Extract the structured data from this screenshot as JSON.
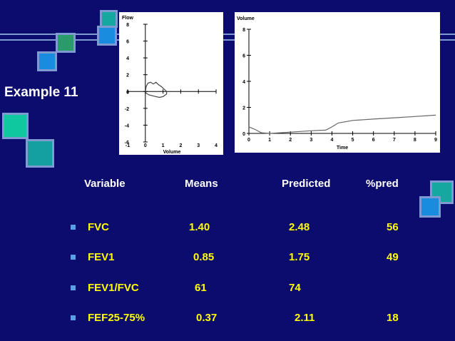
{
  "slide": {
    "title": "Example 11",
    "colors": {
      "background": "#0c0c6e",
      "header_text": "#ffffff",
      "value_text": "#ffff00",
      "bullet": "#5aa0e6"
    }
  },
  "table": {
    "headers": [
      "Variable",
      "Means",
      "Predicted",
      "%pred"
    ],
    "rows": [
      [
        "FVC",
        "1.40",
        "2.48",
        "56"
      ],
      [
        "FEV1",
        "0.85",
        "1.75",
        "49"
      ],
      [
        "FEV1/FVC",
        "61",
        "74",
        ""
      ],
      [
        "FEF25-75%",
        "0.37",
        "2.11",
        "18"
      ]
    ]
  },
  "chart_data": [
    {
      "type": "line",
      "title": "",
      "xlabel": "Volume",
      "ylabel": "Flow",
      "xlim": [
        -1,
        4
      ],
      "ylim": [
        -6,
        8
      ],
      "x_ticks": [
        "-1",
        "0",
        "1",
        "2",
        "3",
        "4"
      ],
      "y_ticks": [
        "8",
        "6",
        "4",
        "2",
        "0",
        "-2",
        "-4",
        "-6"
      ],
      "series": [
        {
          "x": [
            0,
            0.05,
            0.15,
            0.3,
            0.45,
            0.6,
            0.75,
            0.9,
            1.0,
            1.1,
            1.2,
            1.2,
            1.0,
            0.8,
            0.6,
            0.4,
            0.2,
            0.05,
            0
          ],
          "y": [
            0,
            0.6,
            1.0,
            1.1,
            0.9,
            1.1,
            0.8,
            0.6,
            0.4,
            0.2,
            0,
            -0.3,
            -0.6,
            -0.7,
            -0.6,
            -0.5,
            -0.4,
            -0.2,
            0
          ]
        }
      ]
    },
    {
      "type": "line",
      "title": "",
      "xlabel": "Time",
      "ylabel": "Volume",
      "xlim": [
        0,
        9
      ],
      "ylim": [
        0,
        8
      ],
      "x_ticks": [
        "0",
        "1",
        "2",
        "3",
        "4",
        "5",
        "6",
        "7",
        "8",
        "9"
      ],
      "y_ticks": [
        "8",
        "6",
        "4",
        "2",
        "0"
      ],
      "series": [
        {
          "x": [
            0,
            0.3,
            0.6,
            1.0,
            2.0,
            3.0,
            3.7,
            4.0,
            4.3,
            5.0,
            6.0,
            7.0,
            8.0,
            9.0
          ],
          "y": [
            0.5,
            0.3,
            0.05,
            0,
            0.1,
            0.2,
            0.25,
            0.5,
            0.8,
            1.0,
            1.1,
            1.2,
            1.3,
            1.4
          ]
        }
      ]
    }
  ]
}
